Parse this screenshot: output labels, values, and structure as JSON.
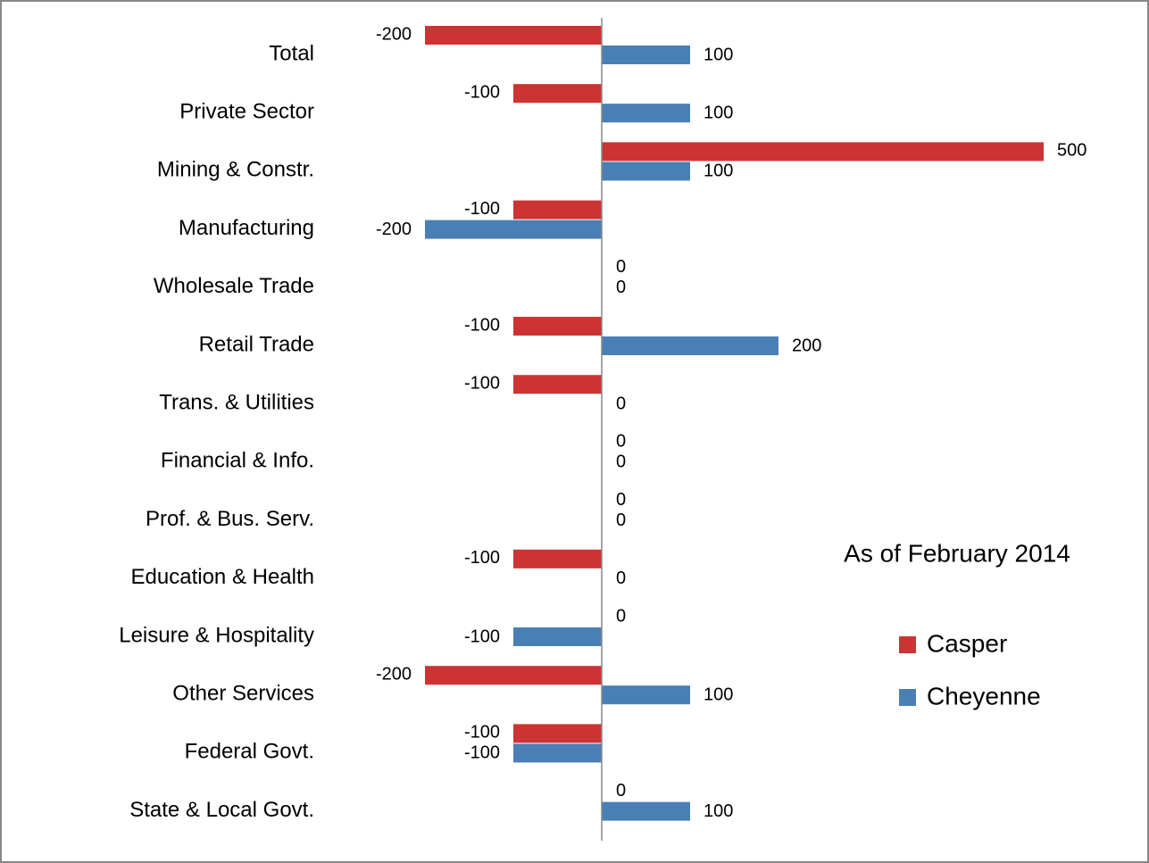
{
  "chart_data": {
    "type": "hbar",
    "annotation": "As of February 2014",
    "categories": [
      "Total",
      "Private Sector",
      "Mining & Constr.",
      "Manufacturing",
      "Wholesale Trade",
      "Retail Trade",
      "Trans. & Utilities",
      "Financial & Info.",
      "Prof. & Bus. Serv.",
      "Education & Health",
      "Leisure & Hospitality",
      "Other Services",
      "Federal Govt.",
      "State & Local Govt."
    ],
    "series": [
      {
        "name": "Casper",
        "color": "#cc3333",
        "values": [
          -200,
          -100,
          500,
          -100,
          0,
          -100,
          -100,
          0,
          0,
          -100,
          0,
          -200,
          -100,
          0
        ]
      },
      {
        "name": "Cheyenne",
        "color": "#4a7fb5",
        "values": [
          100,
          100,
          100,
          -200,
          0,
          200,
          0,
          0,
          0,
          0,
          -100,
          100,
          -100,
          100
        ]
      }
    ],
    "xlim": [
      -300,
      600
    ]
  }
}
